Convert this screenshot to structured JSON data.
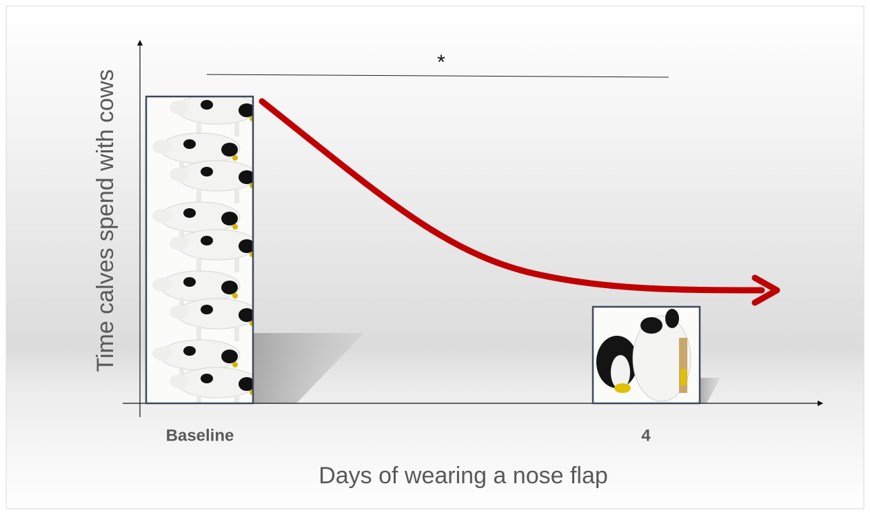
{
  "y_axis_label": "Time calves spend with cows",
  "x_axis_label": "Days of wearing a nose flap",
  "categories": [
    "Baseline",
    "4"
  ],
  "significance": "*"
}
